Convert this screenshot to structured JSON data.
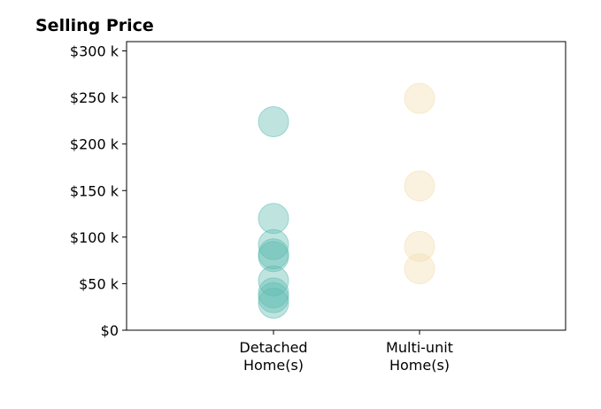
{
  "chart_data": {
    "type": "scatter",
    "title": "Selling Price",
    "xlabel": "",
    "ylabel": "",
    "categories": [
      "Detached\nHome(s)",
      "Multi-unit\nHome(s)"
    ],
    "ylim": [
      0,
      310000
    ],
    "y_ticks": [
      0,
      50000,
      100000,
      150000,
      200000,
      250000,
      300000
    ],
    "y_tick_labels": [
      "$0",
      "$50 k",
      "$100 k",
      "$150 k",
      "$200 k",
      "$250 k",
      "$300 k"
    ],
    "grid": false,
    "legend": "none",
    "series": [
      {
        "category": "Detached\nHome(s)",
        "color": "#5fbcb2",
        "values": [
          224000,
          120000,
          92000,
          82000,
          79000,
          53000,
          40000,
          35000,
          29000
        ]
      },
      {
        "category": "Multi-unit\nHome(s)",
        "color": "#f2deb0",
        "values": [
          249000,
          155000,
          90000,
          66000
        ]
      }
    ]
  }
}
